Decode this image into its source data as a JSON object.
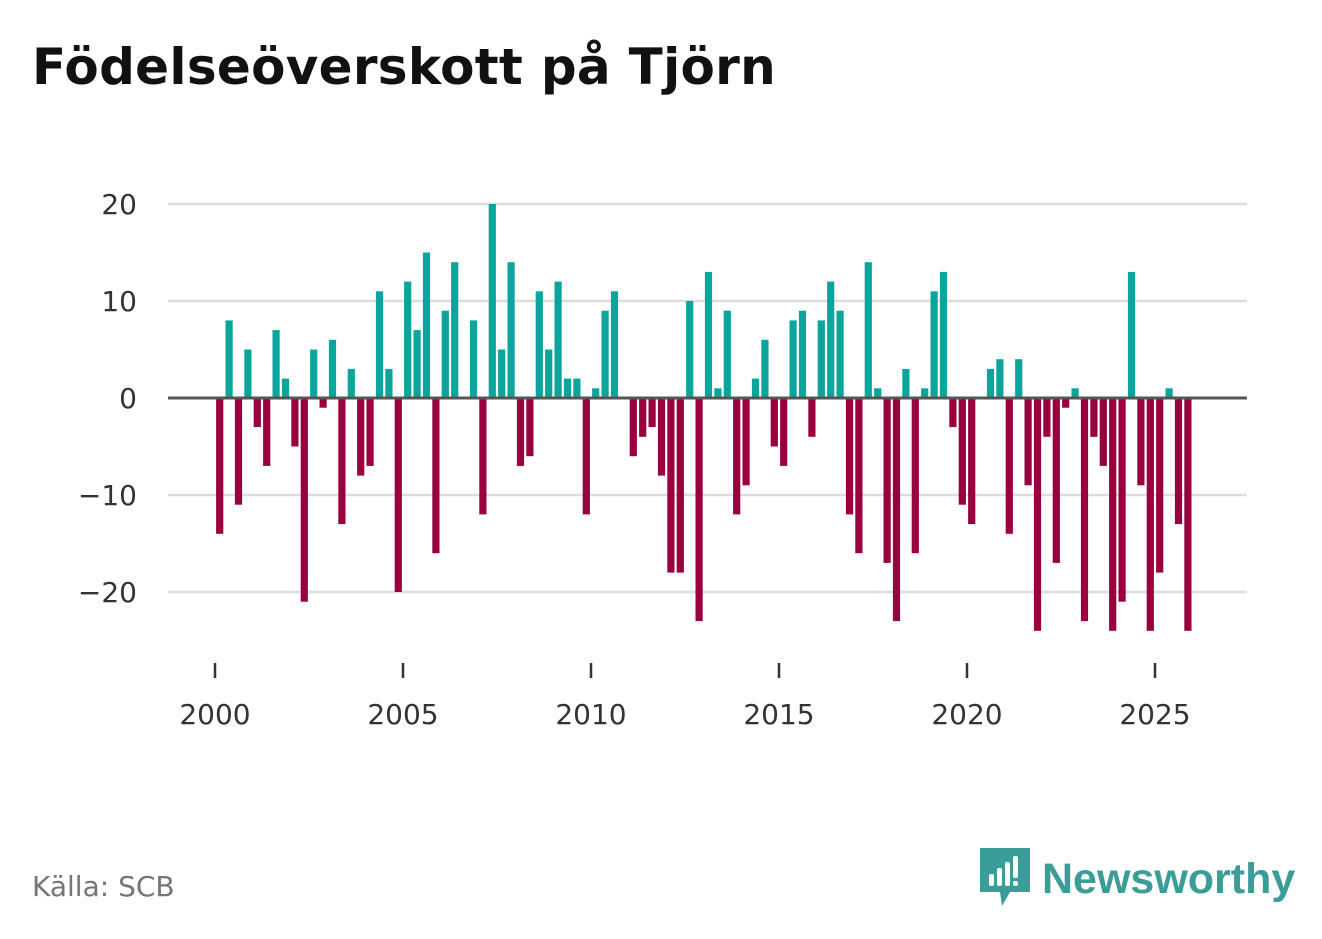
{
  "chart_data": {
    "type": "bar",
    "title": "Födelseöverskott på Tjörn",
    "xlabel": "",
    "ylabel": "",
    "ylim": [
      -27,
      20
    ],
    "yticks": [
      20,
      10,
      0,
      -10,
      -20
    ],
    "ytick_labels": [
      "20",
      "10",
      "0",
      "−10",
      "−20"
    ],
    "xticks": [
      2000,
      2005,
      2010,
      2015,
      2020,
      2025
    ],
    "xtick_labels": [
      "2000",
      "2005",
      "2010",
      "2015",
      "2020",
      "2025"
    ],
    "grid": true,
    "colors": {
      "positive": "#0ba59b",
      "negative": "#98003f",
      "zero_line": "#555555",
      "grid": "#dddddd"
    },
    "x_start": 2000.125,
    "x_step": 0.25,
    "values": [
      -14,
      8,
      -11,
      5,
      -3,
      -7,
      7,
      2,
      -5,
      -21,
      5,
      -1,
      6,
      -13,
      3,
      -8,
      -7,
      11,
      3,
      -20,
      12,
      7,
      15,
      -16,
      9,
      14,
      0,
      8,
      -12,
      20,
      5,
      14,
      -7,
      -6,
      11,
      5,
      12,
      2,
      2,
      -12,
      1,
      9,
      11,
      0,
      -6,
      -4,
      -3,
      -8,
      -18,
      -18,
      10,
      -23,
      13,
      1,
      9,
      -12,
      -9,
      2,
      6,
      -5,
      -7,
      8,
      9,
      -4,
      8,
      12,
      9,
      -12,
      -16,
      14,
      1,
      -17,
      -23,
      3,
      -16,
      1,
      11,
      13,
      -3,
      -11,
      -13,
      0,
      3,
      4,
      -14,
      4,
      -9,
      -24,
      -4,
      -17,
      -1,
      1,
      -23,
      -4,
      -7,
      -24,
      -21,
      13,
      -9,
      -24,
      -18,
      1,
      -13,
      -24
    ]
  },
  "footer": {
    "source": "Källa: SCB",
    "brand": "Newsworthy"
  }
}
